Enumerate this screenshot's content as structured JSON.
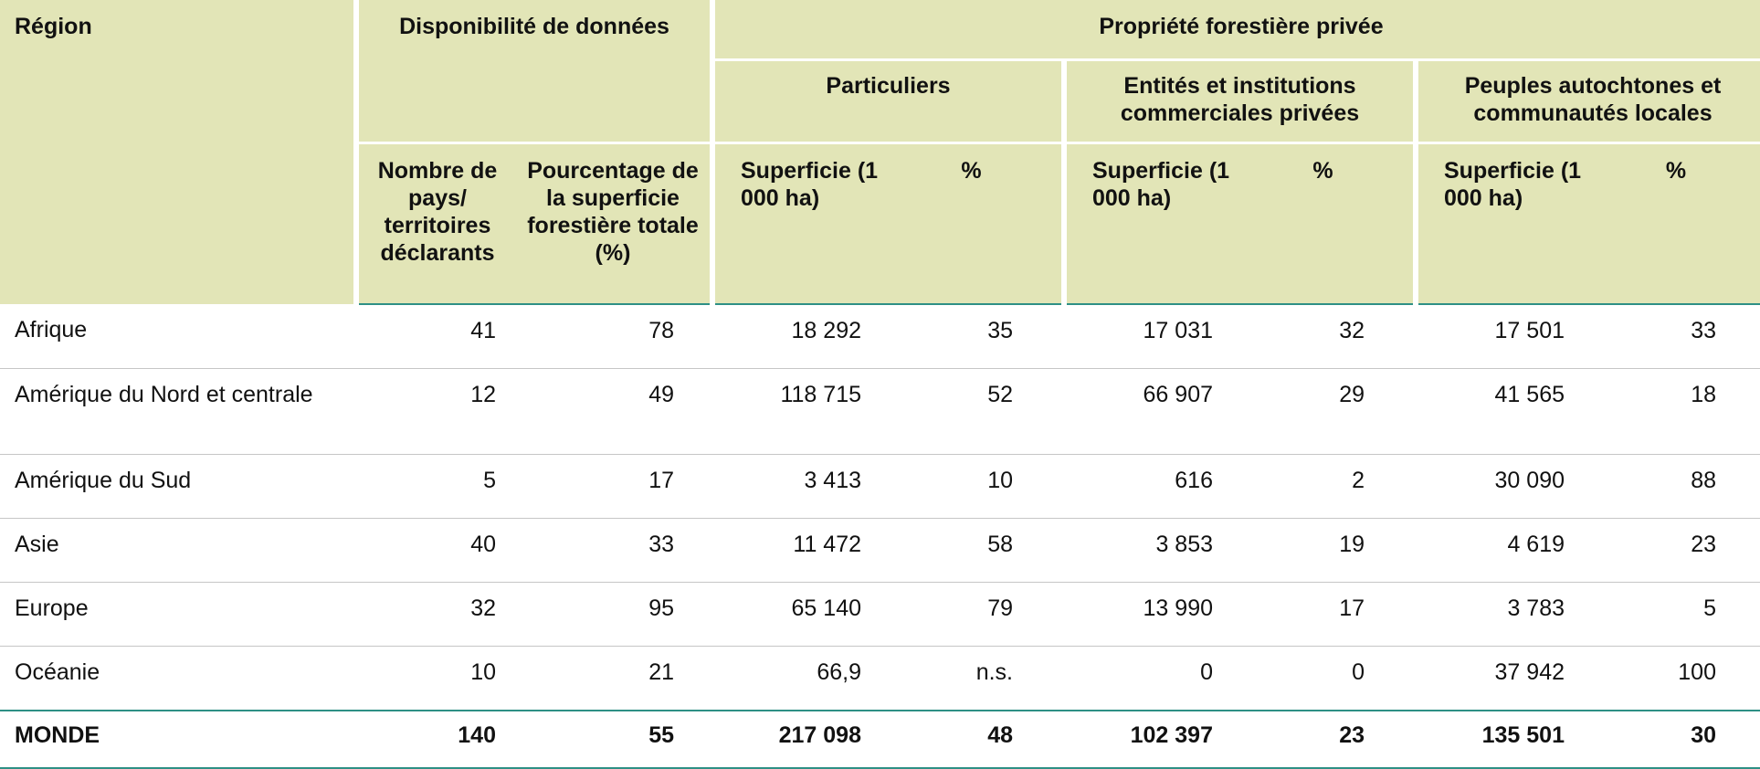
{
  "header": {
    "region": "Région",
    "availability": "Disponibilité de données",
    "private_ownership": "Propriété forestière privée",
    "groups": {
      "individuals": "Particuliers",
      "entities": "Entités et institutions commerciales privées",
      "indigenous": "Peuples autochtones et communautés locales"
    },
    "sub": {
      "n_countries": "Nombre de pays/ territoires déclarants",
      "pct_area": "Pourcentage de la superficie forestière totale (%)",
      "area": "Superficie (1 000 ha)",
      "percent": "%"
    }
  },
  "rows": [
    {
      "region": "Afrique",
      "n": "41",
      "pct": "78",
      "ind_area": "18 292",
      "ind_pct": "35",
      "ent_area": "17 031",
      "ent_pct": "32",
      "ind2_area": "17 501",
      "ind2_pct": "33"
    },
    {
      "region": "Amérique du Nord et centrale",
      "n": "12",
      "pct": "49",
      "ind_area": "118 715",
      "ind_pct": "52",
      "ent_area": "66 907",
      "ent_pct": "29",
      "ind2_area": "41 565",
      "ind2_pct": "18"
    },
    {
      "region": "Amérique du Sud",
      "n": "5",
      "pct": "17",
      "ind_area": "3 413",
      "ind_pct": "10",
      "ent_area": "616",
      "ent_pct": "2",
      "ind2_area": "30 090",
      "ind2_pct": "88"
    },
    {
      "region": "Asie",
      "n": "40",
      "pct": "33",
      "ind_area": "11 472",
      "ind_pct": "58",
      "ent_area": "3 853",
      "ent_pct": "19",
      "ind2_area": "4 619",
      "ind2_pct": "23"
    },
    {
      "region": "Europe",
      "n": "32",
      "pct": "95",
      "ind_area": "65 140",
      "ind_pct": "79",
      "ent_area": "13 990",
      "ent_pct": "17",
      "ind2_area": "3 783",
      "ind2_pct": "5"
    },
    {
      "region": "Océanie",
      "n": "10",
      "pct": "21",
      "ind_area": "66,9",
      "ind_pct": "n.s.",
      "ent_area": "0",
      "ent_pct": "0",
      "ind2_area": "37 942",
      "ind2_pct": "100"
    }
  ],
  "total": {
    "region": "MONDE",
    "n": "140",
    "pct": "55",
    "ind_area": "217 098",
    "ind_pct": "48",
    "ent_area": "102 397",
    "ent_pct": "23",
    "ind2_area": "135 501",
    "ind2_pct": "30"
  }
}
